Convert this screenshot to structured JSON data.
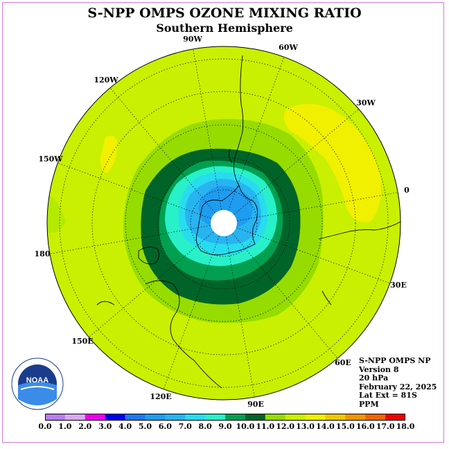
{
  "title": "S-NPP OMPS OZONE MIXING RATIO",
  "subtitle": "Southern Hemisphere",
  "longitude_labels": [
    "90W",
    "60W",
    "30W",
    "0",
    "30E",
    "60E",
    "90E",
    "120E",
    "150E",
    "180",
    "150W",
    "120W"
  ],
  "info": {
    "instrument": "S-NPP OMPS NP",
    "version": "Version 8",
    "level": "20 hPa",
    "date": "February 22, 2025",
    "lat_ext": "Lat Ext = 81S",
    "units": "PPM"
  },
  "logo": {
    "text": "NOAA",
    "icon": "noaa-logo-icon"
  },
  "colorbar": {
    "ticks": [
      "0.0",
      "1.0",
      "2.0",
      "3.0",
      "4.0",
      "5.0",
      "6.0",
      "7.0",
      "8.0",
      "9.0",
      "10.0",
      "11.0",
      "12.0",
      "13.0",
      "14.0",
      "15.0",
      "16.0",
      "17.0",
      "18.0"
    ],
    "colors": [
      "#b87ef0",
      "#d8a8f0",
      "#f000f0",
      "#0000f0",
      "#1e78f0",
      "#1e9cf0",
      "#28b4f0",
      "#28dcf0",
      "#28f0c8",
      "#00a050",
      "#006428",
      "#96dc00",
      "#c8f000",
      "#f0f000",
      "#f0c800",
      "#f09600",
      "#f06400",
      "#f00000",
      "#8c5a3c"
    ]
  }
}
